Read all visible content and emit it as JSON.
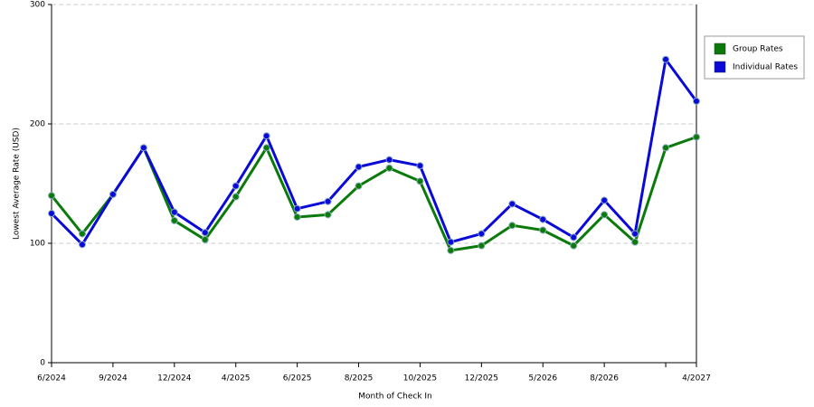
{
  "chart_data": {
    "type": "line",
    "x_label": "Month of Check In",
    "y_label": "Lowest Average Rate (USD)",
    "categories": [
      "6/2024",
      null,
      "9/2024",
      null,
      "12/2024",
      null,
      "4/2025",
      null,
      "6/2025",
      null,
      "8/2025",
      null,
      "10/2025",
      null,
      "12/2025",
      null,
      "5/2026",
      null,
      "8/2026",
      null,
      null,
      "4/2027"
    ],
    "series": [
      {
        "name": "Group Rates",
        "color": "#0a7a0a",
        "values": [
          140,
          108,
          141,
          180,
          119,
          103,
          139,
          180,
          122,
          124,
          148,
          163,
          152,
          94,
          98,
          115,
          111,
          98,
          124,
          101,
          180,
          189
        ]
      },
      {
        "name": "Individual Rates",
        "color": "#0a0ad8",
        "values": [
          125,
          99,
          141,
          180,
          126,
          109,
          148,
          190,
          129,
          135,
          164,
          170,
          165,
          101,
          108,
          133,
          120,
          105,
          136,
          108,
          254,
          219
        ]
      }
    ],
    "ylim": [
      0,
      300
    ],
    "yticks": [
      0,
      100,
      200,
      300
    ],
    "grid": true,
    "legend": "right"
  }
}
